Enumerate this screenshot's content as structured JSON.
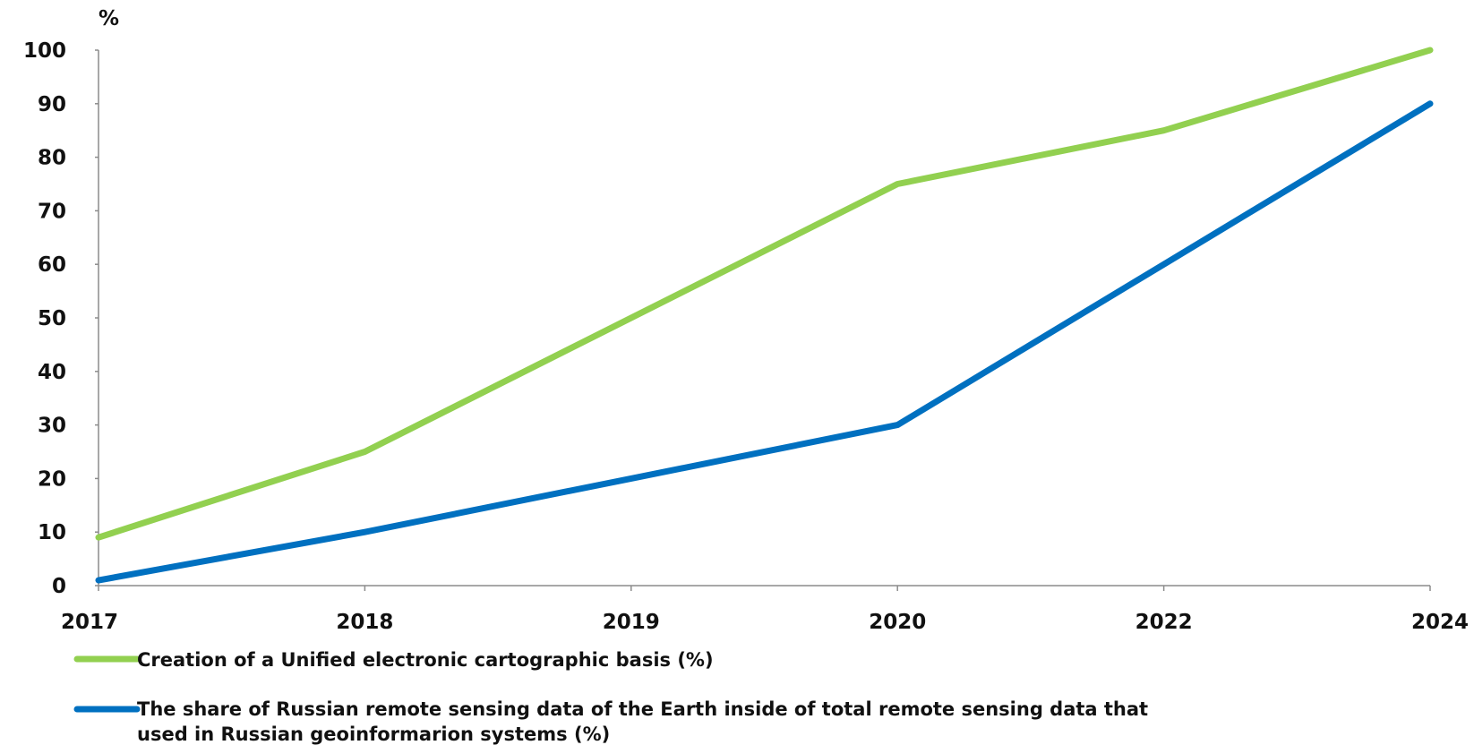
{
  "chart_data": {
    "type": "line",
    "unit_label": "%",
    "categories": [
      "2017",
      "2018",
      "2019",
      "2020",
      "2022",
      "2024"
    ],
    "y_ticks": [
      0,
      10,
      20,
      30,
      40,
      50,
      60,
      70,
      80,
      90,
      100
    ],
    "ylim": [
      0,
      100
    ],
    "grid": false,
    "legend_position": "bottom",
    "series": [
      {
        "name": "Creation of a Unified electronic cartographic basis (%)",
        "color": "#92d050",
        "values": [
          9,
          25,
          50,
          75,
          85,
          100
        ]
      },
      {
        "name_lines": [
          "The share of Russian remote sensing data of the Earth inside of total remote sensing data that",
          "used in Russian geoinformarion systems (%)"
        ],
        "color": "#0070c0",
        "values": [
          1,
          10,
          20,
          30,
          60,
          90
        ]
      }
    ]
  }
}
